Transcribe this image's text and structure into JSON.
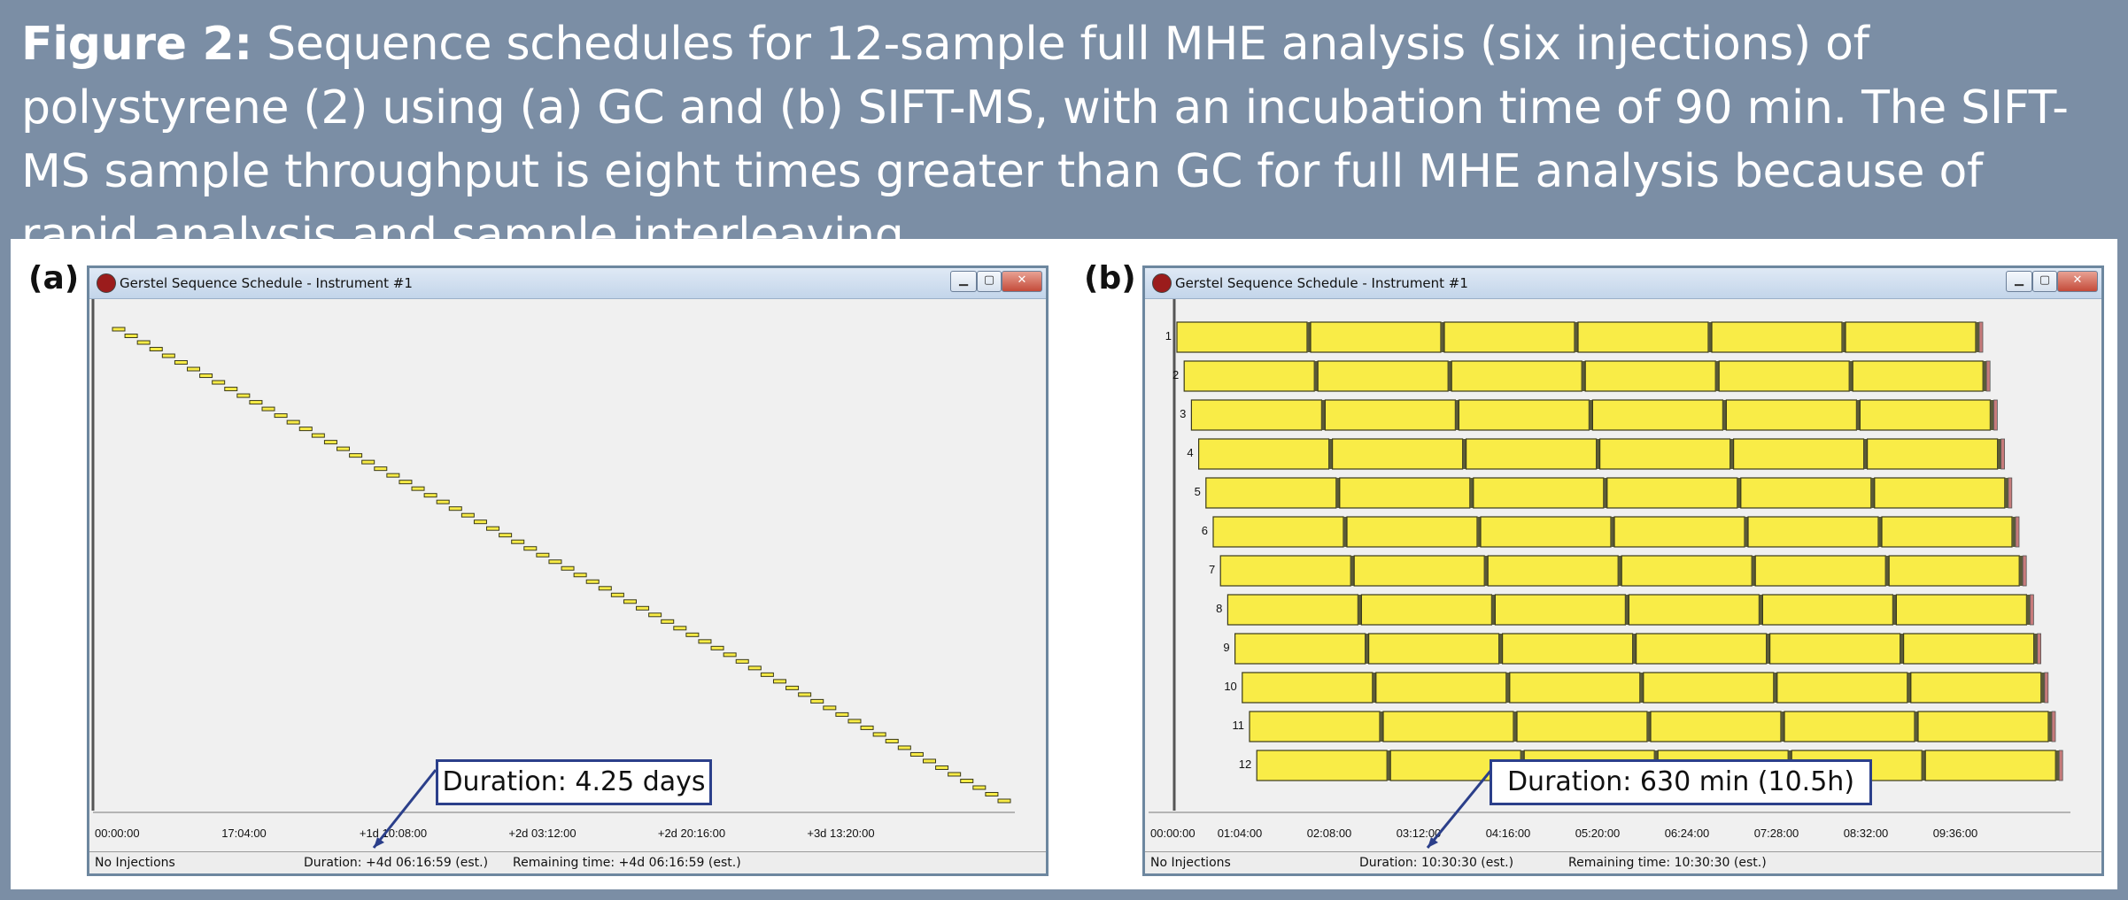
{
  "caption": {
    "bold": "Figure 2:",
    "text": " Sequence schedules for 12-sample full MHE analysis (six injections) of polystyrene (2) using (a) GC and (b) SIFT-MS, with an incubation time of 90 min. The SIFT-MS sample throughput is eight times greater than GC for full MHE analysis because of rapid analysis and sample interleaving."
  },
  "colors": {
    "header_bg": "#7b8ea5",
    "bar_fill": "#f9ec47",
    "bar_stroke": "#3a3a1a",
    "callout_border": "#2b3f8a"
  },
  "panel_a": {
    "label": "(a)",
    "window_title": "Gerstel Sequence Schedule - Instrument #1",
    "buttons": {
      "minimize": "▁",
      "maximize": "▢",
      "close": "✕"
    },
    "axis_ticks": [
      "00:00:00",
      "17:04:00",
      "+1d 10:08:00",
      "+2d 03:12:00",
      "+2d 20:16:00",
      "+3d 13:20:00"
    ],
    "status": {
      "injections": "No Injections",
      "duration": "Duration: +4d 06:16:59  (est.)",
      "remaining": "Remaining time: +4d 06:16:59  (est.)"
    },
    "callout": "Duration: 4.25 days",
    "chart_data": {
      "type": "gantt",
      "blocks": 72,
      "duration_days": 4.25
    }
  },
  "panel_b": {
    "label": "(b)",
    "window_title": "Gerstel Sequence Schedule - Instrument #1",
    "buttons": {
      "minimize": "▁",
      "maximize": "▢",
      "close": "✕"
    },
    "axis_ticks": [
      "00:00:00",
      "01:04:00",
      "02:08:00",
      "03:12:00",
      "04:16:00",
      "05:20:00",
      "06:24:00",
      "07:28:00",
      "08:32:00",
      "09:36:00"
    ],
    "row_labels": [
      "1",
      "2",
      "3",
      "4",
      "5",
      "6",
      "7",
      "8",
      "9",
      "10",
      "11",
      "12"
    ],
    "status": {
      "injections": "No Injections",
      "duration": "Duration: 10:30:30  (est.)",
      "remaining": "Remaining time: 10:30:30  (est.)"
    },
    "callout": "Duration: 630 min (10.5h)",
    "chart_data": {
      "type": "gantt",
      "rows": 12,
      "injections_per_row": 6,
      "duration_min": 630
    }
  }
}
